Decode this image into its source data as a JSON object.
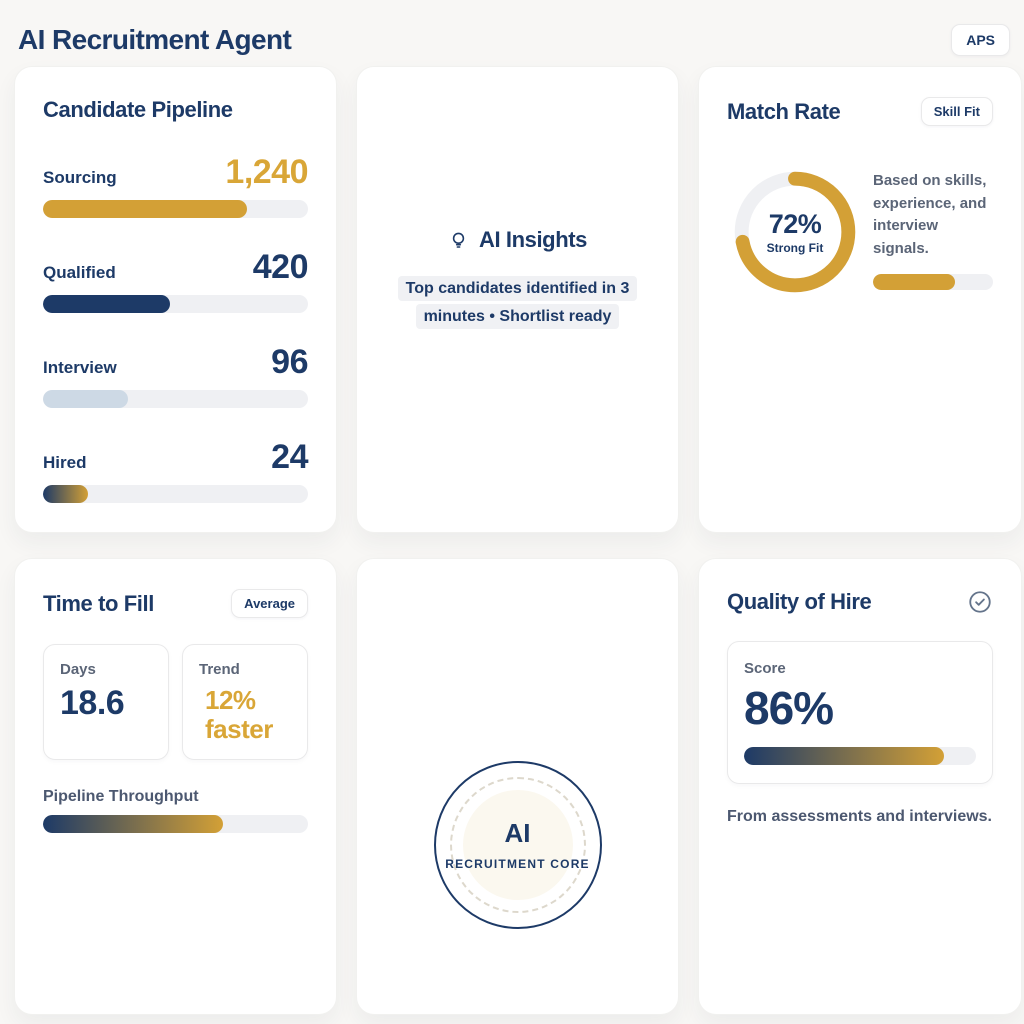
{
  "header": {
    "title": "AI Recruitment Agent",
    "badge": "APS"
  },
  "pipeline_card": {
    "title": "Candidate Pipeline",
    "stages": [
      {
        "label": "Sourcing",
        "value": "1,240",
        "pct": 77,
        "bar_color": "gold"
      },
      {
        "label": "Qualified",
        "value": "420",
        "pct": 48,
        "bar_color": "navy"
      },
      {
        "label": "Interview",
        "value": "96",
        "pct": 32,
        "bar_color": "lightblue"
      },
      {
        "label": "Hired",
        "value": "24",
        "pct": 17,
        "bar_color": "navy-to-gold-gradient"
      }
    ]
  },
  "insights_card": {
    "title": "AI Insights",
    "icon": "lightbulb-icon",
    "text": "Top candidates identified in 3 minutes • Shortlist ready"
  },
  "match_card": {
    "title": "Match Rate",
    "badge": "Skill Fit",
    "donut": {
      "pct": 72,
      "value": "72%",
      "label": "Strong Fit"
    },
    "description": "Based on skills, experience, and interview signals.",
    "bar_pct": 68
  },
  "time_card": {
    "title": "Time to Fill",
    "badge": "Average",
    "days": {
      "label": "Days",
      "value": "18.6"
    },
    "trend": {
      "label": "Trend",
      "value": "12% faster"
    },
    "throughput": {
      "label": "Pipeline Throughput",
      "pct": 68
    }
  },
  "core_card": {
    "line1": "AI",
    "line2": "RECRUITMENT CORE"
  },
  "quality_card": {
    "title": "Quality of Hire",
    "icon": "check-circle-icon",
    "score_label": "Score",
    "score_value": "86%",
    "bar_pct": 86,
    "footnote": "From assessments and interviews."
  },
  "colors": {
    "navy": "#1d3a67",
    "gold": "#d3a036",
    "gold_bright": "#d9a637",
    "lightblue": "#cdd9e5",
    "slate": "#5b6577",
    "slate_dark": "#4c5870",
    "track": "#eff0f3",
    "highlight": "#f0f1f4",
    "border": "#e9e9ea",
    "page_bg": "#f8f7f5"
  }
}
